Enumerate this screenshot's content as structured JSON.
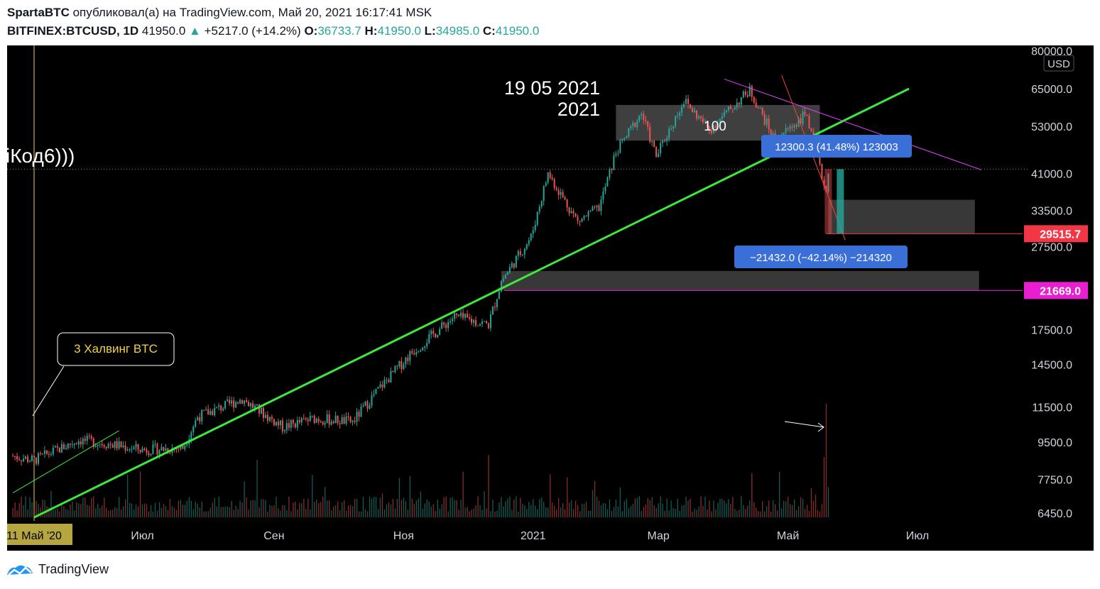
{
  "header": {
    "author": "SpartaBTC",
    "published_text": "опубликовал(а) на TradingView.com, Май 20, 2021 16:17:41 MSK",
    "symbol": "BITFINEX:BTCUSD, 1D",
    "price": "41950.0",
    "change": "+5217.0 (+14.2%)",
    "o_label": "O:",
    "o_value": "36733.7",
    "h_label": "H:",
    "h_value": "41950.0",
    "l_label": "L:",
    "l_value": "34985.0",
    "c_label": "C:",
    "c_value": "41950.0"
  },
  "footer": {
    "brand": "TradingView"
  },
  "colors": {
    "background": "#000000",
    "up": "#26a69a",
    "down": "#ef5350",
    "trendline": "#3ce83c",
    "resistance": "#e040fb",
    "red_line": "#f44336",
    "label_blue": "#3a6fd8",
    "price_red": "#f23645",
    "price_magenta": "#e91ed0"
  },
  "chart_data": {
    "type": "candlestick",
    "title": "",
    "y_scale": "log",
    "currency_label": "USD",
    "y_ticks": [
      80000.0,
      65000.0,
      53000.0,
      41000.0,
      33500.0,
      27500.0,
      17500.0,
      14500.0,
      11500.0,
      9500.0,
      7750.0,
      6450.0
    ],
    "y_tick_labels": [
      "80000.0",
      "65000.0",
      "53000.0",
      "41000.0",
      "33500.0",
      "27500.0",
      "17500.0",
      "14500.0",
      "11500.0",
      "9500.0",
      "7750.0",
      "6450.0"
    ],
    "x_range": [
      "2020-05-01",
      "2021-07-31"
    ],
    "x_ticks": [
      {
        "date": "2020-05-11",
        "label": "11 Май '20"
      },
      {
        "date": "2020-07-01",
        "label": "Июл"
      },
      {
        "date": "2020-09-01",
        "label": "Сен"
      },
      {
        "date": "2020-11-01",
        "label": "Ноя"
      },
      {
        "date": "2021-01-01",
        "label": "2021"
      },
      {
        "date": "2021-03-01",
        "label": "Мар"
      },
      {
        "date": "2021-05-01",
        "label": "Май"
      },
      {
        "date": "2021-07-01",
        "label": "Июл"
      }
    ],
    "price_anchors": [
      [
        "2020-05-01",
        8800
      ],
      [
        "2020-05-11",
        8600
      ],
      [
        "2020-06-01",
        9600
      ],
      [
        "2020-06-15",
        9400
      ],
      [
        "2020-07-01",
        9100
      ],
      [
        "2020-07-20",
        9200
      ],
      [
        "2020-07-27",
        10900
      ],
      [
        "2020-08-17",
        12000
      ],
      [
        "2020-09-05",
        10300
      ],
      [
        "2020-09-20",
        10800
      ],
      [
        "2020-10-08",
        10600
      ],
      [
        "2020-10-21",
        12800
      ],
      [
        "2020-11-05",
        15500
      ],
      [
        "2020-11-25",
        18800
      ],
      [
        "2020-12-11",
        18000
      ],
      [
        "2020-12-17",
        22800
      ],
      [
        "2020-12-31",
        29000
      ],
      [
        "2021-01-08",
        41000
      ],
      [
        "2021-01-22",
        31500
      ],
      [
        "2021-02-01",
        34000
      ],
      [
        "2021-02-09",
        46000
      ],
      [
        "2021-02-21",
        57000
      ],
      [
        "2021-02-28",
        45000
      ],
      [
        "2021-03-13",
        61000
      ],
      [
        "2021-03-25",
        52000
      ],
      [
        "2021-04-13",
        64500
      ],
      [
        "2021-04-25",
        49000
      ],
      [
        "2021-05-10",
        57000
      ],
      [
        "2021-05-12",
        50000
      ],
      [
        "2021-05-19",
        37000
      ],
      [
        "2021-05-20",
        41950
      ]
    ],
    "volume_spike": {
      "date": "2021-05-19"
    },
    "drawings": {
      "trendline": {
        "from": [
          "2020-05-11",
          6300
        ],
        "to": [
          "2021-06-27",
          65000
        ]
      },
      "small_trendline": {
        "from": [
          "2020-05-01",
          7200
        ],
        "to": [
          "2020-06-20",
          10100
        ]
      },
      "resistance": {
        "from": [
          "2021-04-01",
          68500
        ],
        "to": [
          "2021-07-31",
          41800
        ]
      },
      "red_descending": {
        "from": [
          "2021-04-28",
          70000
        ],
        "to": [
          "2021-05-28",
          28500
        ]
      },
      "zone_top": {
        "from": "2021-02-09",
        "to": "2021-05-16",
        "high": 59500,
        "low": 49000
      },
      "zone_mid": {
        "from": "2021-05-20",
        "to": "2021-07-28",
        "high": 35500,
        "low": 29500
      },
      "zone_low": {
        "from": "2020-12-17",
        "to": "2021-07-30",
        "high": 24100,
        "low": 21669
      }
    },
    "dotted_price": 41950,
    "annotations": {
      "date_line1": "19 05 2021",
      "date_line2": "2021",
      "code_text": "іКод6)))",
      "zone_label": "100",
      "halving_callout": "3 Халвинг BTC",
      "measure_up": "12300.3 (41.48%) 123003",
      "measure_down": "−21432.0 (−42.14%) −214320"
    },
    "price_labels": [
      {
        "value": 29515.7,
        "text": "29515.7",
        "color": "#f23645"
      },
      {
        "value": 21669.0,
        "text": "21669.0",
        "color": "#e91ed0"
      }
    ]
  }
}
